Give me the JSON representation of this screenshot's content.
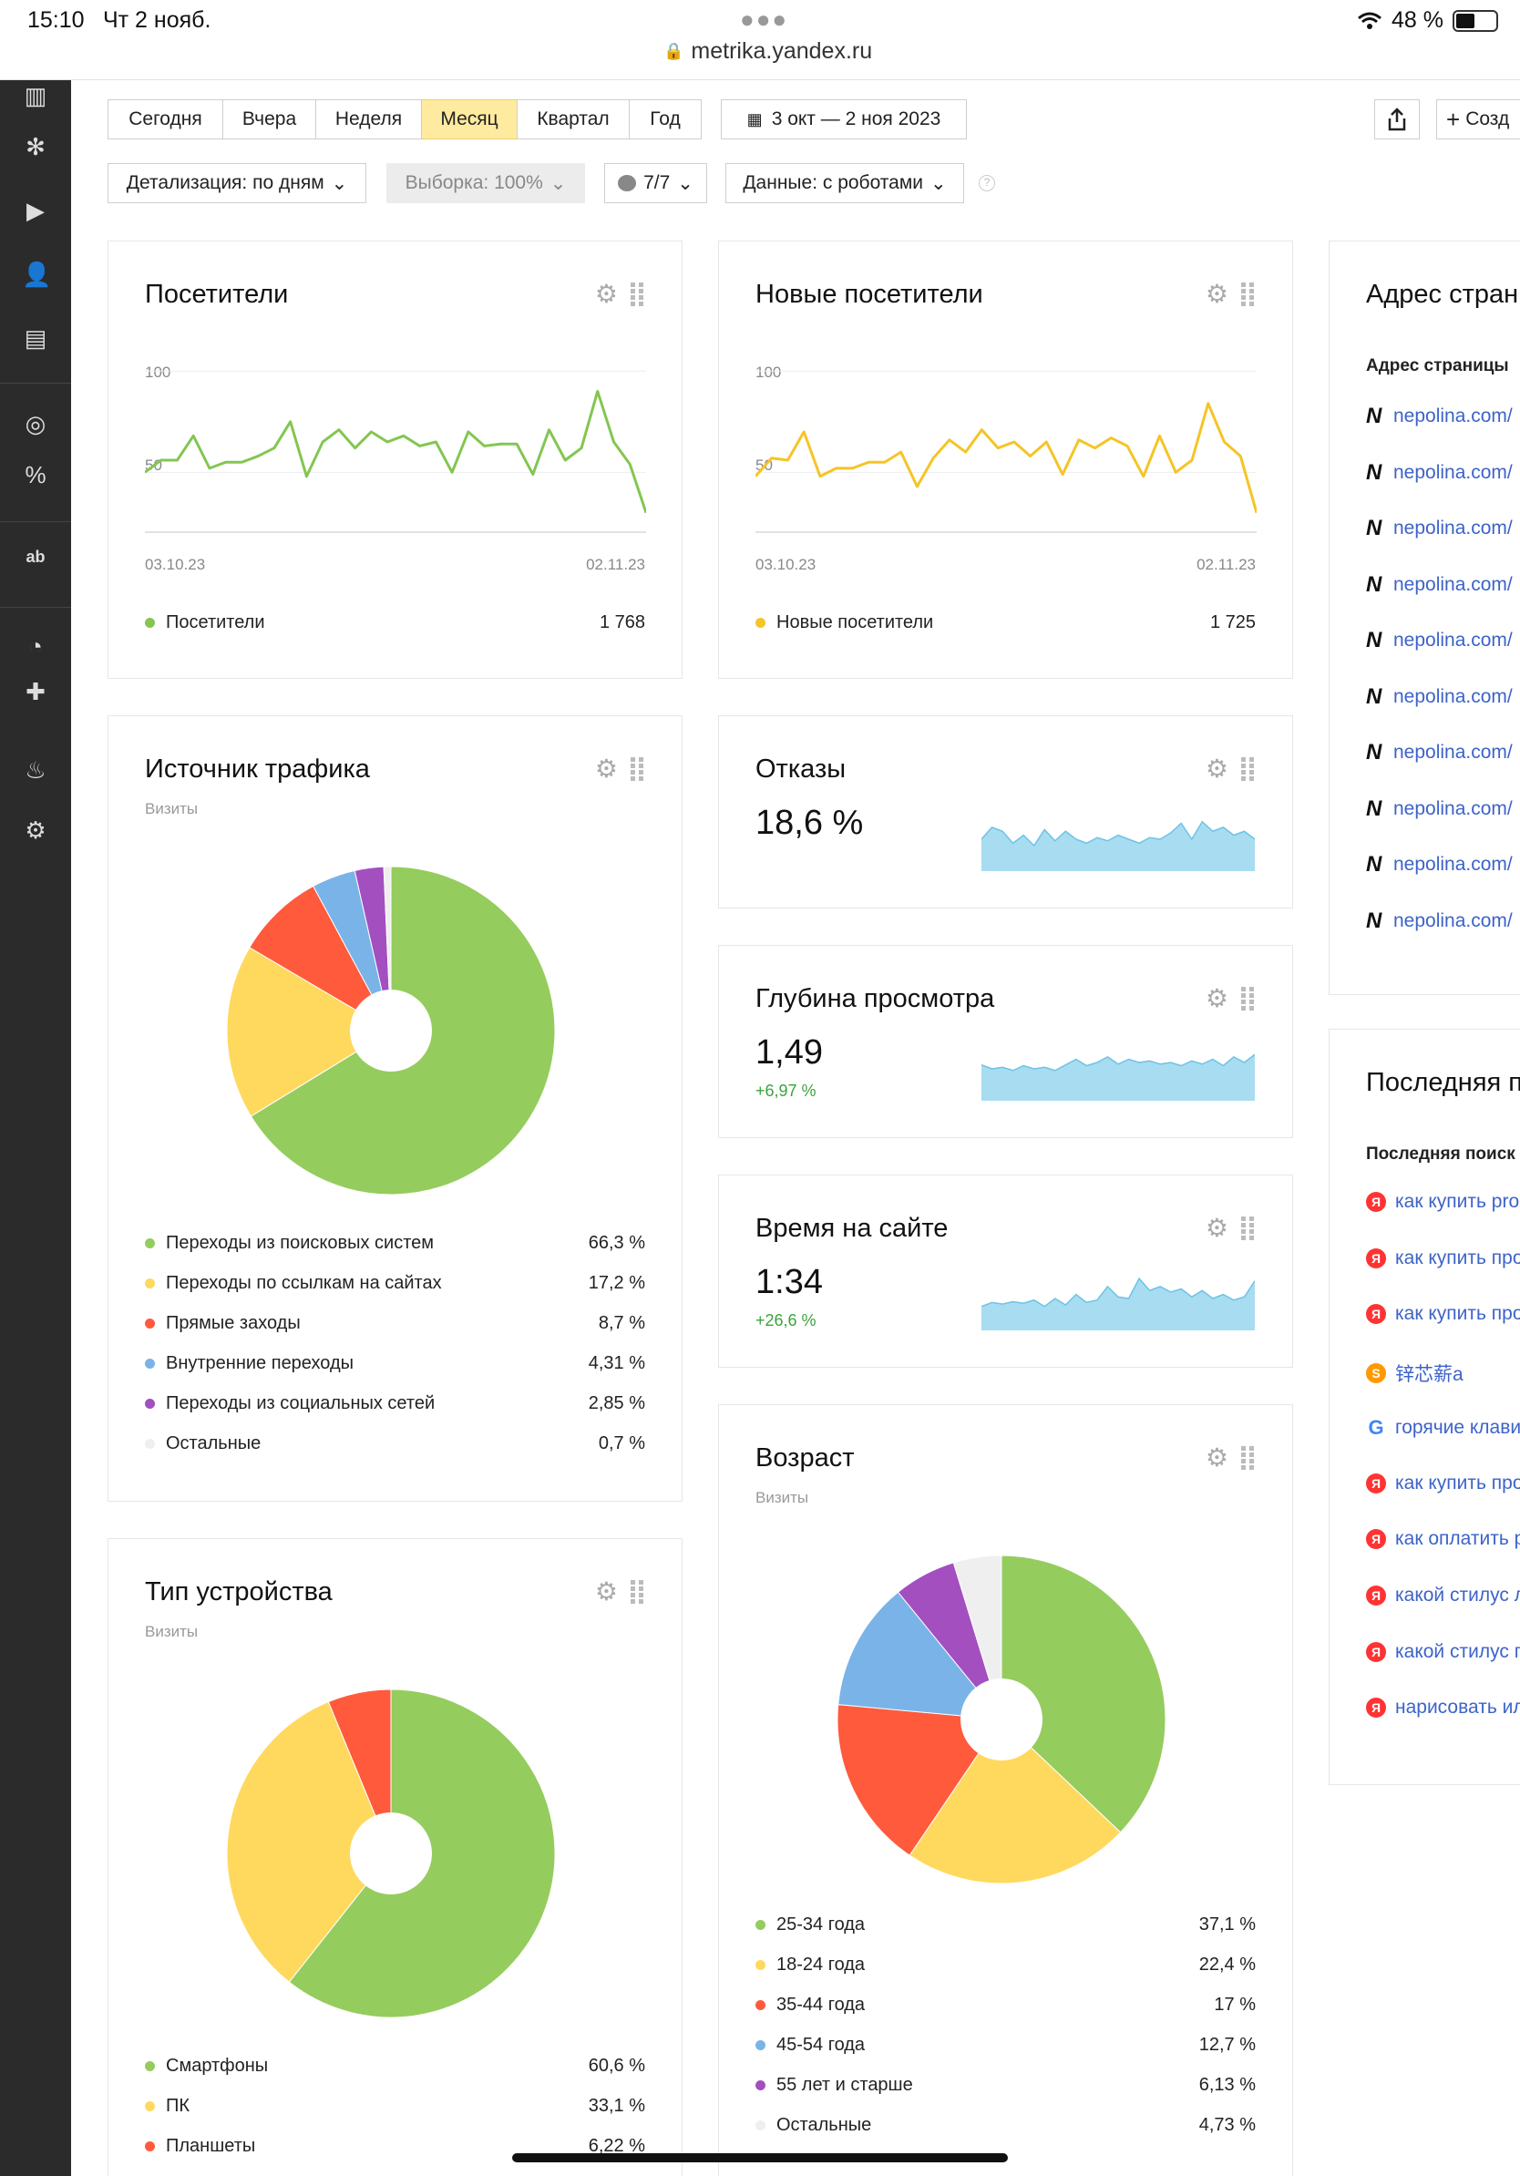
{
  "status_bar": {
    "time": "15:10",
    "date": "Чт 2 нояб.",
    "url": "metrika.yandex.ru",
    "battery": "48 %",
    "battery_level": 0.48
  },
  "periods": [
    {
      "label": "Сегодня",
      "active": false
    },
    {
      "label": "Вчера",
      "active": false
    },
    {
      "label": "Неделя",
      "active": false
    },
    {
      "label": "Месяц",
      "active": true
    },
    {
      "label": "Квартал",
      "active": false
    },
    {
      "label": "Год",
      "active": false
    }
  ],
  "date_range": "3 окт — 2 ноя 2023",
  "create_label": "Созд",
  "filters": {
    "detail": "Детализация: по дням",
    "sample": "Выборка: 100%",
    "segments": "7/7",
    "robots": "Данные: с роботами"
  },
  "visitors": {
    "title": "Посетители",
    "legend": "Посетители",
    "total": "1 768",
    "x_start": "03.10.23",
    "x_end": "02.11.23",
    "y_ticks": [
      "100",
      "50"
    ],
    "color": "#84c651",
    "chart_data": {
      "type": "line",
      "ylim": [
        20,
        110
      ],
      "values": [
        50,
        56,
        56,
        68,
        52,
        55,
        55,
        58,
        62,
        75,
        48,
        65,
        71,
        62,
        70,
        65,
        68,
        63,
        65,
        50,
        70,
        63,
        64,
        64,
        49,
        71,
        56,
        62,
        90,
        65,
        54,
        30
      ]
    }
  },
  "new_visitors": {
    "title": "Новые посетители",
    "legend": "Новые посетители",
    "total": "1 725",
    "x_start": "03.10.23",
    "x_end": "02.11.23",
    "y_ticks": [
      "100",
      "50"
    ],
    "color": "#f5c427",
    "chart_data": {
      "type": "line",
      "ylim": [
        20,
        110
      ],
      "values": [
        48,
        57,
        56,
        70,
        48,
        52,
        52,
        55,
        55,
        60,
        43,
        57,
        66,
        60,
        71,
        62,
        65,
        58,
        65,
        49,
        66,
        62,
        67,
        63,
        48,
        68,
        50,
        56,
        84,
        65,
        58,
        30
      ]
    }
  },
  "traffic": {
    "title": "Источник трафика",
    "sub": "Визиты",
    "chart_data": {
      "type": "pie",
      "slices": [
        {
          "label": "Переходы из поисковых систем",
          "value": 66.3,
          "display": "66,3 %",
          "color": "#95cc5e"
        },
        {
          "label": "Переходы по ссылкам на сайтах",
          "value": 17.2,
          "display": "17,2 %",
          "color": "#ffd95e"
        },
        {
          "label": "Прямые заходы",
          "value": 8.7,
          "display": "8,7 %",
          "color": "#ff5a3c"
        },
        {
          "label": "Внутренние переходы",
          "value": 4.31,
          "display": "4,31 %",
          "color": "#7ab3e8"
        },
        {
          "label": "Переходы из социальных сетей",
          "value": 2.85,
          "display": "2,85 %",
          "color": "#a34fc0"
        },
        {
          "label": "Остальные",
          "value": 0.7,
          "display": "0,7 %",
          "color": "#efefef"
        }
      ]
    }
  },
  "bounce": {
    "title": "Отказы",
    "value": "18,6 %",
    "spark": [
      40,
      55,
      50,
      35,
      45,
      32,
      52,
      38,
      50,
      40,
      35,
      42,
      38,
      45,
      40,
      35,
      42,
      40,
      48,
      60,
      40,
      62,
      50,
      55,
      45,
      50,
      40
    ]
  },
  "depth": {
    "title": "Глубина просмотра",
    "value": "1,49",
    "delta": "+6,97 %",
    "spark": [
      45,
      40,
      42,
      38,
      44,
      40,
      42,
      38,
      45,
      52,
      44,
      48,
      55,
      46,
      52,
      48,
      50,
      46,
      48,
      44,
      50,
      46,
      52,
      44,
      55,
      48,
      58
    ]
  },
  "time": {
    "title": "Время на сайте",
    "value": "1:34",
    "delta": "+26,6 %",
    "spark": [
      30,
      35,
      33,
      36,
      34,
      38,
      30,
      40,
      32,
      45,
      35,
      38,
      55,
      42,
      40,
      65,
      50,
      55,
      48,
      52,
      42,
      50,
      40,
      45,
      38,
      42,
      62
    ]
  },
  "age": {
    "title": "Возраст",
    "sub": "Визиты",
    "chart_data": {
      "type": "pie",
      "slices": [
        {
          "label": "25-34 года",
          "value": 37.1,
          "display": "37,1 %",
          "color": "#95cc5e"
        },
        {
          "label": "18-24 года",
          "value": 22.4,
          "display": "22,4 %",
          "color": "#ffd95e"
        },
        {
          "label": "35-44 года",
          "value": 17,
          "display": "17 %",
          "color": "#ff5a3c"
        },
        {
          "label": "45-54 года",
          "value": 12.7,
          "display": "12,7 %",
          "color": "#7ab3e8"
        },
        {
          "label": "55 лет и старше",
          "value": 6.13,
          "display": "6,13 %",
          "color": "#a34fc0"
        },
        {
          "label": "Остальные",
          "value": 4.73,
          "display": "4,73 %",
          "color": "#efefef"
        }
      ]
    }
  },
  "device": {
    "title": "Тип устройства",
    "sub": "Визиты",
    "chart_data": {
      "type": "pie",
      "slices": [
        {
          "label": "Смартфоны",
          "value": 60.6,
          "display": "60,6 %",
          "color": "#95cc5e"
        },
        {
          "label": "ПК",
          "value": 33.1,
          "display": "33,1 %",
          "color": "#ffd95e"
        },
        {
          "label": "Планшеты",
          "value": 6.22,
          "display": "6,22 %",
          "color": "#ff5a3c"
        }
      ]
    }
  },
  "pages": {
    "title": "Адрес стран",
    "header": "Адрес страницы",
    "items": [
      "nepolina.com/",
      "nepolina.com/",
      "nepolina.com/",
      "nepolina.com/",
      "nepolina.com/",
      "nepolina.com/",
      "nepolina.com/",
      "nepolina.com/",
      "nepolina.com/",
      "nepolina.com/"
    ]
  },
  "search": {
    "title": "Последняя п",
    "header": "Последняя поиск",
    "items": [
      {
        "engine": "yandex",
        "text": "как купить pro"
      },
      {
        "engine": "yandex",
        "text": "как купить про"
      },
      {
        "engine": "yandex",
        "text": "как купить про"
      },
      {
        "engine": "sogou",
        "text": "锌芯薪а"
      },
      {
        "engine": "google",
        "text": "горячие клави"
      },
      {
        "engine": "yandex",
        "text": "как купить про"
      },
      {
        "engine": "yandex",
        "text": "как оплатить р"
      },
      {
        "engine": "yandex",
        "text": "какой стилус л"
      },
      {
        "engine": "yandex",
        "text": "какой стилус п"
      },
      {
        "engine": "yandex",
        "text": "нарисовать ил"
      }
    ]
  }
}
